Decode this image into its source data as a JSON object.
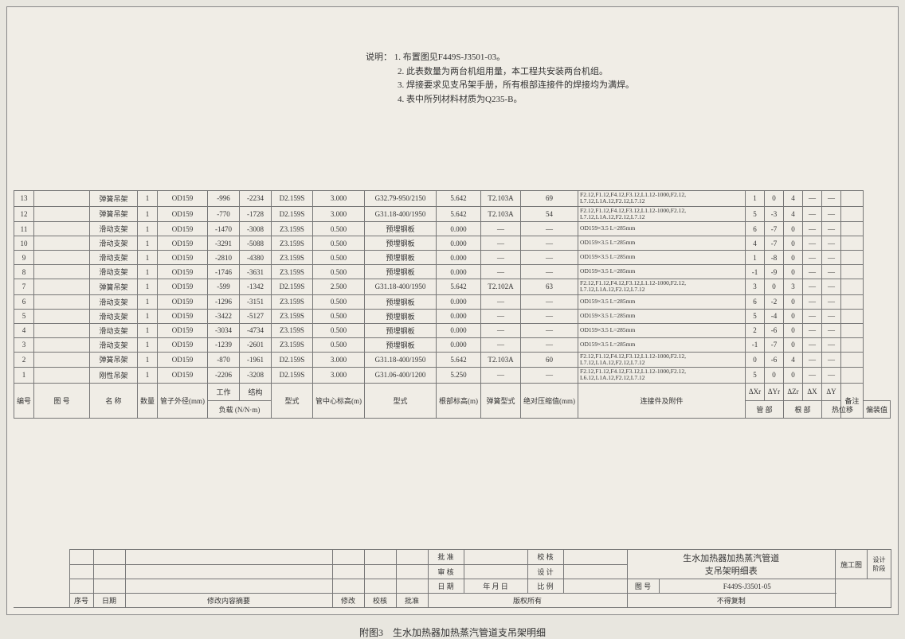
{
  "notes": {
    "prefix": "说明：",
    "items": [
      "1. 布置图见F449S-J3501-03。",
      "2. 此表数量为两台机组用量，本工程共安装两台机组。",
      "3. 焊接要求见支吊架手册，所有根部连接件的焊接均为满焊。",
      "4. 表中所列材料材质为Q235-B。"
    ]
  },
  "headers": {
    "bianhao": "编号",
    "tuhao": "图 号",
    "name": "名 称",
    "qty": "数量",
    "od": "管子外径(mm)",
    "work": "工作",
    "struct": "结构",
    "load": "负载",
    "load_unit": "N/N·m",
    "type": "型式",
    "pipe_h": "管中心标高(m)",
    "pipe_sec": "管 部",
    "root_type": "型式",
    "root_h": "根部标高(m)",
    "root_sec": "根 部",
    "spring": "弹簧型式",
    "comp": "绝对压缩值(mm)",
    "conn": "连接件及附件",
    "dxr": "ΔXr",
    "dyr": "ΔYr",
    "dzr": "ΔZr",
    "dx": "ΔX",
    "dy": "ΔY",
    "hot": "热位移",
    "offset": "偏装值",
    "remark": "备注"
  },
  "rows": [
    {
      "n": "13",
      "name": "弹簧吊架",
      "q": "1",
      "od": "OD159",
      "w": "-996",
      "s": "-2234",
      "t": "D2.159S",
      "ph": "3.000",
      "rt": "G32.79-950/2150",
      "rh": "5.642",
      "sp": "T2.103A",
      "cp": "69",
      "conn": "F2.12,F1.12,F4.12,F3.12,L1.12-1000,F2.12,\nL7.12,L1A.12,F2.12,L7.12",
      "x": "1",
      "y": "0",
      "z": "4",
      "dx": "—",
      "dy": "—"
    },
    {
      "n": "12",
      "name": "弹簧吊架",
      "q": "1",
      "od": "OD159",
      "w": "-770",
      "s": "-1728",
      "t": "D2.159S",
      "ph": "3.000",
      "rt": "G31.18-400/1950",
      "rh": "5.642",
      "sp": "T2.103A",
      "cp": "54",
      "conn": "F2.12,F1.12,F4.12,F3.12,L1.12-1000,F2.12,\nL7.12,L1A.12,F2.12,L7.12",
      "x": "5",
      "y": "-3",
      "z": "4",
      "dx": "—",
      "dy": "—"
    },
    {
      "n": "11",
      "name": "滑动支架",
      "q": "1",
      "od": "OD159",
      "w": "-1470",
      "s": "-3008",
      "t": "Z3.159S",
      "ph": "0.500",
      "rt": "预埋钢板",
      "rh": "0.000",
      "sp": "—",
      "cp": "—",
      "conn": "OD159×3.5  L=285mm",
      "x": "6",
      "y": "-7",
      "z": "0",
      "dx": "—",
      "dy": "—"
    },
    {
      "n": "10",
      "name": "滑动支架",
      "q": "1",
      "od": "OD159",
      "w": "-3291",
      "s": "-5088",
      "t": "Z3.159S",
      "ph": "0.500",
      "rt": "预埋钢板",
      "rh": "0.000",
      "sp": "—",
      "cp": "—",
      "conn": "OD159×3.5  L=285mm",
      "x": "4",
      "y": "-7",
      "z": "0",
      "dx": "—",
      "dy": "—"
    },
    {
      "n": "9",
      "name": "滑动支架",
      "q": "1",
      "od": "OD159",
      "w": "-2810",
      "s": "-4380",
      "t": "Z3.159S",
      "ph": "0.500",
      "rt": "预埋钢板",
      "rh": "0.000",
      "sp": "—",
      "cp": "—",
      "conn": "OD159×3.5  L=285mm",
      "x": "1",
      "y": "-8",
      "z": "0",
      "dx": "—",
      "dy": "—"
    },
    {
      "n": "8",
      "name": "滑动支架",
      "q": "1",
      "od": "OD159",
      "w": "-1746",
      "s": "-3631",
      "t": "Z3.159S",
      "ph": "0.500",
      "rt": "预埋钢板",
      "rh": "0.000",
      "sp": "—",
      "cp": "—",
      "conn": "OD159×3.5  L=285mm",
      "x": "-1",
      "y": "-9",
      "z": "0",
      "dx": "—",
      "dy": "—"
    },
    {
      "n": "7",
      "name": "弹簧吊架",
      "q": "1",
      "od": "OD159",
      "w": "-599",
      "s": "-1342",
      "t": "D2.159S",
      "ph": "2.500",
      "rt": "G31.18-400/1950",
      "rh": "5.642",
      "sp": "T2.102A",
      "cp": "63",
      "conn": "F2.12,F1.12,F4.12,F3.12,L1.12-1000,F2.12,\nL7.12,L1A.12,F2.12,L7.12",
      "x": "3",
      "y": "0",
      "z": "3",
      "dx": "—",
      "dy": "—"
    },
    {
      "n": "6",
      "name": "滑动支架",
      "q": "1",
      "od": "OD159",
      "w": "-1296",
      "s": "-3151",
      "t": "Z3.159S",
      "ph": "0.500",
      "rt": "预埋钢板",
      "rh": "0.000",
      "sp": "—",
      "cp": "—",
      "conn": "OD159×3.5  L=285mm",
      "x": "6",
      "y": "-2",
      "z": "0",
      "dx": "—",
      "dy": "—"
    },
    {
      "n": "5",
      "name": "滑动支架",
      "q": "1",
      "od": "OD159",
      "w": "-3422",
      "s": "-5127",
      "t": "Z3.159S",
      "ph": "0.500",
      "rt": "预埋钢板",
      "rh": "0.000",
      "sp": "—",
      "cp": "—",
      "conn": "OD159×3.5  L=285mm",
      "x": "5",
      "y": "-4",
      "z": "0",
      "dx": "—",
      "dy": "—"
    },
    {
      "n": "4",
      "name": "滑动支架",
      "q": "1",
      "od": "OD159",
      "w": "-3034",
      "s": "-4734",
      "t": "Z3.159S",
      "ph": "0.500",
      "rt": "预埋钢板",
      "rh": "0.000",
      "sp": "—",
      "cp": "—",
      "conn": "OD159×3.5  L=285mm",
      "x": "2",
      "y": "-6",
      "z": "0",
      "dx": "—",
      "dy": "—"
    },
    {
      "n": "3",
      "name": "滑动支架",
      "q": "1",
      "od": "OD159",
      "w": "-1239",
      "s": "-2601",
      "t": "Z3.159S",
      "ph": "0.500",
      "rt": "预埋钢板",
      "rh": "0.000",
      "sp": "—",
      "cp": "—",
      "conn": "OD159×3.5  L=285mm",
      "x": "-1",
      "y": "-7",
      "z": "0",
      "dx": "—",
      "dy": "—"
    },
    {
      "n": "2",
      "name": "弹簧吊架",
      "q": "1",
      "od": "OD159",
      "w": "-870",
      "s": "-1961",
      "t": "D2.159S",
      "ph": "3.000",
      "rt": "G31.18-400/1950",
      "rh": "5.642",
      "sp": "T2.103A",
      "cp": "60",
      "conn": "F2.12,F1.12,F4.12,F3.12,L1.12-1000,F2.12,\nL7.12,L1A.12,F2.12,L7.12",
      "x": "0",
      "y": "-6",
      "z": "4",
      "dx": "—",
      "dy": "—"
    },
    {
      "n": "1",
      "name": "刚性吊架",
      "q": "1",
      "od": "OD159",
      "w": "-2206",
      "s": "-3208",
      "t": "D2.159S",
      "ph": "3.000",
      "rt": "G31.06-400/1200",
      "rh": "5.250",
      "sp": "—",
      "cp": "—",
      "conn": "F2.12,F1.12,F4.12,F3.12,L1.12-1000,F2.12,\nL6.12,L1A.12,F2.12,L7.12",
      "x": "5",
      "y": "0",
      "z": "0",
      "dx": "—",
      "dy": "—"
    }
  ],
  "title_block": {
    "pizhun": "批 准",
    "jiaohe": "校 核",
    "shenhe": "审 核",
    "sheji": "设 计",
    "riqi": "日 期",
    "nyry": "年 月 日",
    "bili": "比 例",
    "tuhao": "图 号",
    "tuhao_val": "F449S-J3501-05",
    "banquan": "版权所有",
    "fuzhui": "不得复制",
    "shigong": "施工图",
    "jieduan": "设计阶段",
    "title": "生水加热器加热蒸汽管道\n支吊架明细表",
    "xuhao": "序号",
    "riqi2": "日期",
    "xiugainr": "修改内容摘要",
    "xiugai": "修改",
    "jiaohe2": "校核",
    "pizhun2": "批准"
  },
  "caption": "附图3　生水加热器加热蒸汽管道支吊架明细"
}
